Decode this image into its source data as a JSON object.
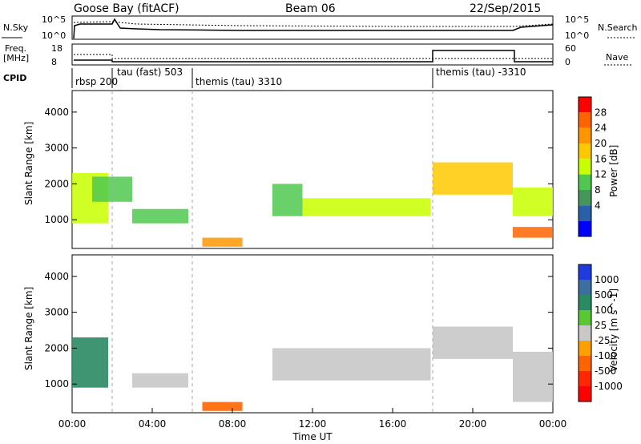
{
  "header": {
    "station": "Goose Bay (fitACF)",
    "beam": "Beam 06",
    "date": "22/Sep/2015"
  },
  "summary": {
    "nsky_label": "N.Sky",
    "nsky_ticks": [
      "10^5",
      "10^0"
    ],
    "nsearch_label": "N.Search",
    "nsearch_ticks": [
      "10^5",
      "10^0"
    ],
    "freq_label_1": "Freq.",
    "freq_label_2": "[MHz]",
    "freq_ticks": [
      "18",
      "8"
    ],
    "nave_label": "Nave",
    "nave_ticks": [
      "60",
      "0"
    ],
    "cpid_label": "CPID",
    "cpid_segments": [
      {
        "label": "rbsp 200",
        "start_h": 0,
        "end_h": 2
      },
      {
        "label": "tau (fast) 503",
        "start_h": 2,
        "end_h": 6
      },
      {
        "label": "themis (tau) 3310",
        "start_h": 6,
        "end_h": 18
      },
      {
        "label": "themis (tau) -3310",
        "start_h": 18,
        "end_h": 24
      }
    ]
  },
  "power_colorbar": {
    "label": "Power [dB]",
    "ticks": [
      "28",
      "24",
      "20",
      "16",
      "12",
      "8",
      "4"
    ],
    "colors": [
      "#ff0000",
      "#ff6400",
      "#ff9600",
      "#ffc800",
      "#c8ff00",
      "#50c850",
      "#46965a",
      "#2a60aa",
      "#0000ff"
    ]
  },
  "velocity_colorbar": {
    "label": "Velocity [m s^-1]",
    "ticks": [
      "1000",
      "500",
      "100",
      "25",
      "-25",
      "-100",
      "-500",
      "-1000"
    ],
    "colors": [
      "#1e3cdc",
      "#3c6ea0",
      "#2a8a62",
      "#5ac832",
      "#c8c8c8",
      "#ffa000",
      "#ff6400",
      "#ff2800",
      "#ff0000"
    ]
  },
  "axes": {
    "ylabel": "Slant Range [km]",
    "yticks": [
      "4000",
      "3000",
      "2000",
      "1000"
    ],
    "xticks": [
      "00:00",
      "04:00",
      "08:00",
      "12:00",
      "16:00",
      "20:00",
      "00:00"
    ],
    "xlabel": "Time UT"
  },
  "chart_data": {
    "type": "heatmap",
    "x_unit": "hours UT",
    "xlim": [
      0,
      24
    ],
    "ylim": [
      200,
      4600
    ],
    "power_regions": [
      {
        "t0": 0.0,
        "t1": 1.8,
        "r0": 900,
        "r1": 2300,
        "power_db": 18
      },
      {
        "t0": 1.0,
        "t1": 3.0,
        "r0": 1500,
        "r1": 2200,
        "power_db": 12
      },
      {
        "t0": 3.0,
        "t1": 5.8,
        "r0": 900,
        "r1": 1300,
        "power_db": 14
      },
      {
        "t0": 6.5,
        "t1": 8.5,
        "r0": 250,
        "r1": 500,
        "power_db": 26
      },
      {
        "t0": 10.0,
        "t1": 11.5,
        "r0": 1100,
        "r1": 2000,
        "power_db": 14
      },
      {
        "t0": 11.5,
        "t1": 17.9,
        "r0": 1100,
        "r1": 1600,
        "power_db": 18
      },
      {
        "t0": 18.0,
        "t1": 22.0,
        "r0": 1700,
        "r1": 2600,
        "power_db": 20
      },
      {
        "t0": 22.0,
        "t1": 24.0,
        "r0": 1100,
        "r1": 1900,
        "power_db": 16
      },
      {
        "t0": 22.0,
        "t1": 24.0,
        "r0": 500,
        "r1": 800,
        "power_db": 30
      }
    ],
    "velocity_regions": [
      {
        "t0": 0.0,
        "t1": 1.8,
        "r0": 900,
        "r1": 2300,
        "velocity_ms": 300
      },
      {
        "t0": 3.0,
        "t1": 5.8,
        "r0": 900,
        "r1": 1300,
        "velocity_ms": 0
      },
      {
        "t0": 6.5,
        "t1": 8.5,
        "r0": 250,
        "r1": 500,
        "velocity_ms": -150
      },
      {
        "t0": 10.0,
        "t1": 17.9,
        "r0": 1100,
        "r1": 2000,
        "velocity_ms": 0
      },
      {
        "t0": 18.0,
        "t1": 22.0,
        "r0": 1700,
        "r1": 2600,
        "velocity_ms": 0
      },
      {
        "t0": 22.0,
        "t1": 24.0,
        "r0": 500,
        "r1": 1900,
        "velocity_ms": 0
      }
    ]
  }
}
